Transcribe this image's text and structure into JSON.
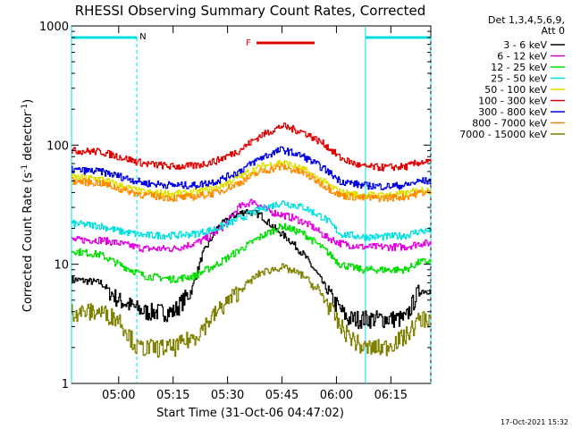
{
  "chart_data": {
    "type": "line",
    "title": "RHESSI Observing Summary Count Rates, Corrected",
    "xlabel": "Start Time (31-Oct-06 04:47:02)",
    "ylabel_main": "Corrected Count Rate (s",
    "ylabel_sup1": "-1",
    "ylabel_mid": " detector",
    "ylabel_sup2": "-1",
    "ylabel_end": ")",
    "y_scale": "log",
    "ylim": [
      1,
      1000
    ],
    "xlim_minutes": [
      0,
      99
    ],
    "x_ticks": [
      "05:00",
      "05:15",
      "05:30",
      "05:45",
      "06:00",
      "06:15"
    ],
    "x_tick_minutes": [
      13,
      28,
      43,
      58,
      73,
      88
    ],
    "y_tick_labels": [
      "1",
      "10",
      "100",
      "1000"
    ],
    "y_ticks": [
      1,
      10,
      100,
      1000
    ],
    "footer": "17-Oct-2021 15:32",
    "legend_header": [
      "Det 1,3,4,5,6,9,",
      "Att 0"
    ],
    "legend_position": "right",
    "series": [
      {
        "name": "3 - 6 keV",
        "color": "#000000",
        "x": [
          0,
          8,
          13,
          20,
          28,
          33,
          36,
          40,
          44,
          48,
          52,
          56,
          60,
          64,
          68,
          72,
          76,
          80,
          86,
          92,
          95,
          96
        ],
        "y": [
          7.5,
          7,
          5,
          4,
          4,
          6,
          12,
          20,
          25,
          28,
          26,
          20,
          16,
          12,
          8,
          5,
          3.5,
          3.5,
          3.5,
          3.5,
          5.5,
          6
        ]
      },
      {
        "name": "6 - 12 keV",
        "color": "#e000e0",
        "x": [
          0,
          8,
          13,
          20,
          28,
          34,
          38,
          42,
          46,
          50,
          54,
          58,
          62,
          66,
          70,
          74,
          80,
          86,
          92,
          96
        ],
        "y": [
          16,
          16,
          15,
          13.5,
          13.5,
          15,
          17,
          21,
          30,
          34,
          28,
          26,
          24,
          21,
          17,
          15,
          14,
          14,
          14,
          15
        ]
      },
      {
        "name": "12 - 25 keV",
        "color": "#00e000",
        "x": [
          0,
          8,
          13,
          20,
          28,
          34,
          40,
          46,
          52,
          58,
          64,
          70,
          74,
          80,
          86,
          92,
          96
        ],
        "y": [
          13,
          12,
          10,
          8,
          7.5,
          8,
          10,
          13,
          17,
          21,
          18,
          13,
          10,
          9,
          9,
          9,
          10.5
        ]
      },
      {
        "name": "25 - 50 keV",
        "color": "#00e0e0",
        "x": [
          0,
          8,
          13,
          20,
          28,
          34,
          40,
          46,
          52,
          58,
          64,
          70,
          74,
          80,
          86,
          92,
          96
        ],
        "y": [
          22,
          21,
          19,
          17.5,
          17.5,
          18,
          20,
          24,
          29,
          33,
          30,
          24,
          18,
          17,
          17,
          17.5,
          19
        ]
      },
      {
        "name": "50 - 100 keV",
        "color": "#e0e000",
        "x": [
          0,
          8,
          13,
          20,
          28,
          34,
          40,
          46,
          52,
          58,
          64,
          70,
          74,
          80,
          86,
          92,
          96
        ],
        "y": [
          54,
          52,
          46,
          40,
          39,
          40,
          44,
          54,
          66,
          72,
          62,
          48,
          40,
          38,
          38,
          39,
          42
        ]
      },
      {
        "name": "100 - 300 keV",
        "color": "#e00000",
        "x": [
          0,
          8,
          13,
          20,
          28,
          34,
          40,
          46,
          52,
          58,
          64,
          70,
          74,
          80,
          86,
          92,
          96
        ],
        "y": [
          90,
          88,
          80,
          70,
          66,
          67,
          74,
          90,
          120,
          145,
          128,
          100,
          78,
          66,
          65,
          66,
          72
        ]
      },
      {
        "name": "300 - 800 keV",
        "color": "#0000e0",
        "x": [
          0,
          8,
          13,
          20,
          28,
          34,
          40,
          46,
          52,
          58,
          64,
          70,
          74,
          80,
          86,
          92,
          96
        ],
        "y": [
          62,
          60,
          55,
          48,
          46,
          46,
          50,
          60,
          78,
          92,
          80,
          62,
          50,
          46,
          45,
          46,
          50
        ]
      },
      {
        "name": "800 - 7000 keV",
        "color": "#ff8c00",
        "x": [
          0,
          8,
          13,
          20,
          28,
          34,
          40,
          46,
          52,
          58,
          64,
          70,
          74,
          80,
          86,
          92,
          96
        ],
        "y": [
          50,
          48,
          43,
          38,
          36,
          37,
          40,
          48,
          60,
          66,
          58,
          45,
          38,
          36,
          36,
          37,
          40
        ]
      },
      {
        "name": "7000 - 15000 keV",
        "color": "#808000",
        "x": [
          0,
          8,
          13,
          18,
          28,
          34,
          40,
          46,
          52,
          58,
          64,
          70,
          74,
          80,
          86,
          92,
          96
        ],
        "y": [
          4,
          4,
          3.5,
          2,
          2,
          2.5,
          4,
          6,
          8.5,
          9.5,
          8,
          5,
          3,
          2,
          2,
          2.5,
          3.5
        ]
      }
    ],
    "night_markers_minutes": [
      [
        0,
        18
      ],
      [
        81,
        99
      ]
    ],
    "night_color": "#00e0e0",
    "night_label": "N",
    "flare_label": "F",
    "flare_color": "#e00000",
    "flare_minutes": [
      51,
      67
    ]
  }
}
